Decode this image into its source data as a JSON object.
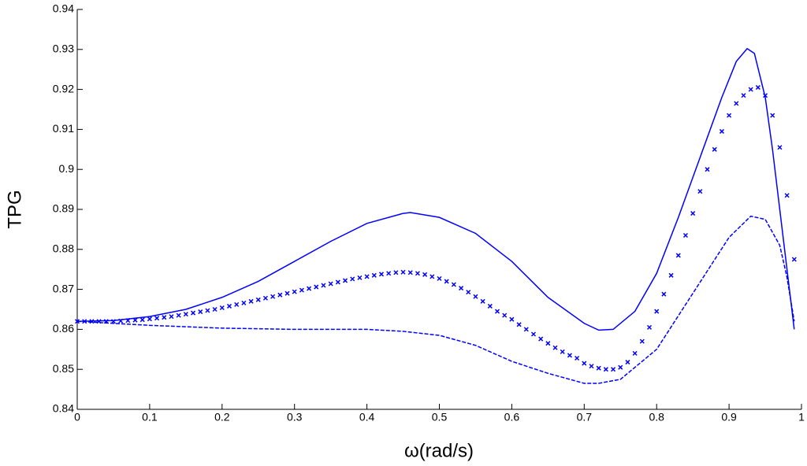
{
  "chart_data": {
    "type": "line",
    "xlabel": "ω(rad/s)",
    "ylabel": "TPG",
    "xlim": [
      0,
      1
    ],
    "ylim": [
      0.84,
      0.94
    ],
    "xticks": [
      0,
      0.1,
      0.2,
      0.3,
      0.4,
      0.5,
      0.6,
      0.7,
      0.8,
      0.9,
      1
    ],
    "yticks": [
      0.84,
      0.85,
      0.86,
      0.87,
      0.88,
      0.89,
      0.9,
      0.91,
      0.92,
      0.93,
      0.94
    ],
    "series": [
      {
        "color": "#0000ff",
        "line_style": "solid",
        "marker": "none",
        "x": [
          0,
          0.05,
          0.1,
          0.15,
          0.2,
          0.25,
          0.3,
          0.35,
          0.4,
          0.45,
          0.46,
          0.5,
          0.55,
          0.6,
          0.65,
          0.7,
          0.72,
          0.74,
          0.77,
          0.8,
          0.83,
          0.86,
          0.89,
          0.91,
          0.925,
          0.935,
          0.95,
          0.96,
          0.97,
          0.98,
          0.99
        ],
        "values": [
          0.862,
          0.8622,
          0.8632,
          0.865,
          0.868,
          0.872,
          0.877,
          0.882,
          0.8865,
          0.889,
          0.8892,
          0.888,
          0.884,
          0.877,
          0.868,
          0.8615,
          0.8598,
          0.86,
          0.8645,
          0.874,
          0.888,
          0.903,
          0.918,
          0.927,
          0.9302,
          0.929,
          0.918,
          0.905,
          0.89,
          0.875,
          0.86
        ]
      },
      {
        "color": "#0000ff",
        "line_style": "none",
        "marker": "x",
        "x": [
          0,
          0.01,
          0.02,
          0.03,
          0.04,
          0.05,
          0.06,
          0.07,
          0.08,
          0.09,
          0.1,
          0.11,
          0.12,
          0.13,
          0.14,
          0.15,
          0.16,
          0.17,
          0.18,
          0.19,
          0.2,
          0.21,
          0.22,
          0.23,
          0.24,
          0.25,
          0.26,
          0.27,
          0.28,
          0.29,
          0.3,
          0.31,
          0.32,
          0.33,
          0.34,
          0.35,
          0.36,
          0.37,
          0.38,
          0.39,
          0.4,
          0.41,
          0.42,
          0.43,
          0.44,
          0.45,
          0.46,
          0.47,
          0.48,
          0.49,
          0.5,
          0.51,
          0.52,
          0.53,
          0.54,
          0.55,
          0.56,
          0.57,
          0.58,
          0.59,
          0.6,
          0.61,
          0.62,
          0.63,
          0.64,
          0.65,
          0.66,
          0.67,
          0.68,
          0.69,
          0.7,
          0.71,
          0.72,
          0.73,
          0.74,
          0.75,
          0.76,
          0.77,
          0.78,
          0.79,
          0.8,
          0.81,
          0.82,
          0.83,
          0.84,
          0.85,
          0.86,
          0.87,
          0.88,
          0.89,
          0.9,
          0.91,
          0.92,
          0.93,
          0.94,
          0.95,
          0.96,
          0.97,
          0.98,
          0.99
        ],
        "values": [
          0.862,
          0.862,
          0.862,
          0.862,
          0.862,
          0.862,
          0.8621,
          0.8622,
          0.8623,
          0.8624,
          0.8626,
          0.8628,
          0.863,
          0.8632,
          0.8635,
          0.8638,
          0.8641,
          0.8644,
          0.8647,
          0.865,
          0.8654,
          0.8658,
          0.8662,
          0.8666,
          0.867,
          0.8674,
          0.8678,
          0.8682,
          0.8686,
          0.869,
          0.8694,
          0.8698,
          0.8702,
          0.8706,
          0.871,
          0.8714,
          0.8718,
          0.8722,
          0.8726,
          0.8729,
          0.8732,
          0.8735,
          0.8738,
          0.874,
          0.8742,
          0.8743,
          0.8742,
          0.874,
          0.8737,
          0.8732,
          0.8727,
          0.872,
          0.8712,
          0.8703,
          0.8693,
          0.8682,
          0.867,
          0.8658,
          0.8645,
          0.8635,
          0.8625,
          0.8612,
          0.86,
          0.8588,
          0.8576,
          0.8565,
          0.8554,
          0.8544,
          0.8535,
          0.8528,
          0.8515,
          0.8508,
          0.8503,
          0.85,
          0.85,
          0.8505,
          0.8518,
          0.854,
          0.857,
          0.8605,
          0.8645,
          0.8688,
          0.8735,
          0.8785,
          0.8835,
          0.889,
          0.8945,
          0.9,
          0.905,
          0.9095,
          0.9135,
          0.9165,
          0.9185,
          0.92,
          0.9205,
          0.9185,
          0.9135,
          0.9055,
          0.8935,
          0.8775
        ]
      },
      {
        "color": "#0000ff",
        "line_style": "dashed",
        "marker": "none",
        "x": [
          0,
          0.1,
          0.2,
          0.3,
          0.4,
          0.45,
          0.5,
          0.55,
          0.6,
          0.65,
          0.7,
          0.72,
          0.75,
          0.8,
          0.85,
          0.9,
          0.93,
          0.95,
          0.97,
          0.98,
          0.99
        ],
        "values": [
          0.862,
          0.861,
          0.8603,
          0.86,
          0.86,
          0.8595,
          0.8585,
          0.856,
          0.852,
          0.849,
          0.8465,
          0.8465,
          0.8475,
          0.855,
          0.869,
          0.883,
          0.8883,
          0.8875,
          0.881,
          0.873,
          0.862
        ]
      }
    ]
  }
}
